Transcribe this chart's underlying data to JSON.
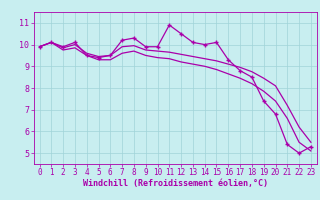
{
  "xlabel": "Windchill (Refroidissement éolien,°C)",
  "background_color": "#c8eef0",
  "grid_color": "#a0d4d8",
  "line_color": "#aa00aa",
  "x_ticks": [
    0,
    1,
    2,
    3,
    4,
    5,
    6,
    7,
    8,
    9,
    10,
    11,
    12,
    13,
    14,
    15,
    16,
    17,
    18,
    19,
    20,
    21,
    22,
    23
  ],
  "ylim": [
    4.5,
    11.5
  ],
  "xlim": [
    -0.5,
    23.5
  ],
  "y_ticks": [
    5,
    6,
    7,
    8,
    9,
    10,
    11
  ],
  "series1": [
    9.9,
    10.1,
    9.9,
    10.1,
    9.5,
    9.4,
    9.5,
    10.2,
    10.3,
    9.9,
    9.9,
    10.9,
    10.5,
    10.1,
    10.0,
    10.1,
    9.3,
    8.8,
    8.5,
    7.4,
    6.8,
    5.4,
    5.0,
    5.3
  ],
  "series2": [
    9.9,
    10.1,
    9.85,
    10.0,
    9.6,
    9.45,
    9.5,
    9.9,
    9.95,
    9.75,
    9.7,
    9.65,
    9.55,
    9.45,
    9.35,
    9.25,
    9.1,
    8.95,
    8.75,
    8.45,
    8.1,
    7.2,
    6.2,
    5.5
  ],
  "series3": [
    9.9,
    10.1,
    9.75,
    9.85,
    9.5,
    9.3,
    9.3,
    9.6,
    9.7,
    9.5,
    9.4,
    9.35,
    9.2,
    9.1,
    9.0,
    8.85,
    8.65,
    8.45,
    8.2,
    7.85,
    7.4,
    6.6,
    5.5,
    5.1
  ],
  "tick_fontsize": 5.5,
  "xlabel_fontsize": 6.0
}
